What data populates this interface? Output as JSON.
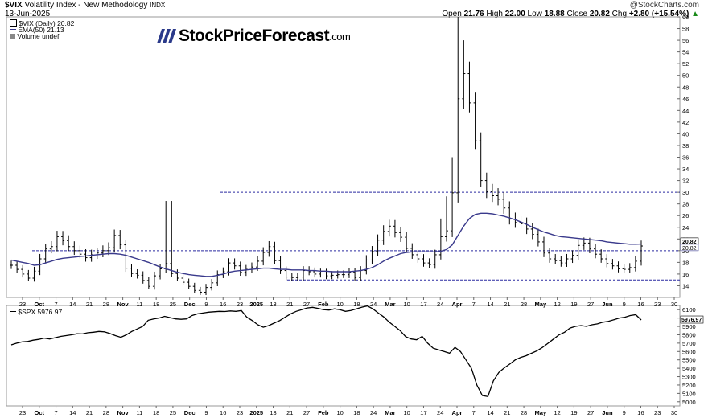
{
  "header": {
    "symbol": "$VIX",
    "name": "Volatility Index - New Methodology",
    "exchange": "INDX",
    "date": "13-Jun-2025",
    "attribution": "@StockCharts.com",
    "open_label": "Open",
    "open": "21.76",
    "high_label": "High",
    "high": "22.00",
    "low_label": "Low",
    "low": "18.88",
    "close_label": "Close",
    "close": "20.82",
    "chg_label": "Chg",
    "chg": "+2.80 (+15.54%)",
    "arrow": "▲"
  },
  "legend": {
    "price": "$VIX (Daily) 20.82",
    "ema": "EMA(50) 21.13",
    "volume": "Volume undef"
  },
  "logo": {
    "main": "StockPriceForecast",
    "suffix": ".com"
  },
  "lower_panel": {
    "legend": "$SPX 5976.97"
  },
  "colors": {
    "bars": "#000000",
    "ema": "#3a3a8c",
    "dashed": "#2a2aa0",
    "spx": "#000000"
  },
  "chart_data": [
    {
      "type": "ohlc",
      "title": "$VIX (Daily)",
      "ylim": [
        12,
        60
      ],
      "y_ticks": [
        14,
        16,
        18,
        20,
        22,
        24,
        26,
        28,
        30,
        32,
        34,
        36,
        38,
        40,
        42,
        44,
        46,
        48,
        50,
        52,
        54,
        56,
        58,
        60
      ],
      "last_value_labels": [
        "20.82",
        "20.82"
      ],
      "x_tick_labels": [
        "23",
        "Oct",
        "7",
        "14",
        "21",
        "28",
        "Nov",
        "11",
        "18",
        "25",
        "Dec",
        "9",
        "16",
        "23",
        "2025",
        "13",
        "21",
        "27",
        "Feb",
        "10",
        "18",
        "24",
        "Mar",
        "10",
        "17",
        "24",
        "Apr",
        "7",
        "14",
        "21",
        "28",
        "May",
        "12",
        "19",
        "27",
        "Jun",
        "9",
        "16",
        "23",
        "30"
      ],
      "horizontal_levels": [
        {
          "value": 30,
          "from": "Dec 16",
          "to": "end"
        },
        {
          "value": 20,
          "from": "Sep 23",
          "to": "end"
        },
        {
          "value": 15,
          "from": "Jan 13",
          "to": "end"
        }
      ],
      "close_path": [
        17.5,
        16.8,
        16.0,
        15.3,
        16.5,
        18.6,
        20.3,
        20.7,
        22.4,
        21.7,
        20.7,
        20.0,
        19.4,
        18.8,
        19.3,
        19.6,
        20.0,
        20.5,
        22.6,
        21.0,
        17.0,
        16.1,
        15.8,
        14.9,
        13.9,
        15.7,
        16.9,
        17.8,
        16.1,
        15.3,
        14.6,
        13.9,
        13.2,
        12.9,
        13.7,
        14.5,
        15.9,
        16.4,
        17.9,
        17.4,
        16.3,
        16.8,
        17.2,
        18.2,
        19.7,
        20.7,
        18.3,
        16.6,
        15.5,
        15.4,
        15.5,
        16.6,
        16.4,
        16.0,
        16.2,
        15.7,
        15.8,
        15.9,
        15.9,
        16.3,
        15.4,
        16.6,
        18.4,
        19.9,
        21.8,
        23.3,
        24.2,
        23.1,
        22.3,
        20.4,
        19.3,
        18.6,
        17.9,
        17.6,
        19.3,
        22.4,
        23.4,
        29.9,
        46.0,
        50.3,
        45.3,
        38.8,
        32.0,
        30.1,
        29.4,
        28.8,
        27.3,
        25.4,
        24.8,
        24.6,
        23.7,
        22.8,
        21.5,
        19.6,
        18.6,
        18.3,
        17.9,
        18.6,
        19.2,
        20.9,
        21.3,
        20.3,
        19.4,
        18.6,
        17.8,
        17.4,
        16.9,
        16.8,
        17.1,
        18.2,
        20.8
      ],
      "ema_path": [
        18.4,
        18.2,
        18.0,
        17.8,
        17.5,
        17.6,
        17.9,
        18.2,
        18.5,
        18.7,
        18.8,
        18.9,
        19.0,
        19.1,
        19.2,
        19.3,
        19.4,
        19.5,
        19.5,
        19.4,
        19.2,
        18.9,
        18.6,
        18.3,
        18.0,
        17.6,
        17.2,
        16.9,
        16.6,
        16.3,
        16.1,
        15.9,
        15.8,
        15.7,
        15.6,
        15.6,
        15.8,
        16.0,
        16.3,
        16.5,
        16.6,
        16.7,
        16.8,
        16.9,
        17.0,
        17.0,
        16.9,
        16.8,
        16.8,
        16.7,
        16.7,
        16.7,
        16.6,
        16.6,
        16.5,
        16.5,
        16.4,
        16.4,
        16.4,
        16.4,
        16.5,
        16.6,
        16.8,
        17.1,
        17.6,
        18.2,
        18.7,
        19.1,
        19.5,
        19.7,
        19.8,
        19.8,
        19.8,
        19.8,
        19.8,
        19.9,
        20.2,
        21.0,
        22.6,
        24.2,
        25.5,
        26.2,
        26.4,
        26.4,
        26.3,
        26.1,
        25.9,
        25.6,
        25.3,
        24.9,
        24.5,
        24.0,
        23.6,
        23.2,
        22.9,
        22.6,
        22.4,
        22.3,
        22.2,
        22.1,
        22.0,
        21.9,
        21.8,
        21.7,
        21.5,
        21.4,
        21.3,
        21.2,
        21.1,
        21.1,
        21.13
      ]
    },
    {
      "type": "line",
      "title": "$SPX",
      "ylim": [
        4950,
        6150
      ],
      "y_ticks": [
        5000,
        5100,
        5200,
        5300,
        5400,
        5500,
        5600,
        5700,
        5800,
        5900,
        6000,
        6100
      ],
      "last_value_label": "5976.97",
      "values": [
        5680,
        5700,
        5715,
        5720,
        5735,
        5745,
        5760,
        5750,
        5765,
        5780,
        5790,
        5800,
        5812,
        5810,
        5825,
        5830,
        5840,
        5835,
        5815,
        5790,
        5770,
        5800,
        5840,
        5870,
        5900,
        5973,
        5990,
        6000,
        6020,
        6005,
        5990,
        5985,
        5990,
        6030,
        6050,
        6060,
        6070,
        6075,
        6080,
        6078,
        6085,
        6080,
        6090,
        6010,
        5970,
        5920,
        5890,
        5910,
        5940,
        5970,
        6010,
        6050,
        6080,
        6100,
        6120,
        6128,
        6115,
        6100,
        6095,
        6110,
        6100,
        6080,
        6090,
        6110,
        6130,
        6144,
        6110,
        6060,
        6013,
        5950,
        5900,
        5850,
        5778,
        5750,
        5740,
        5780,
        5700,
        5640,
        5620,
        5600,
        5580,
        5650,
        5600,
        5500,
        5400,
        5200,
        5074,
        5062,
        5250,
        5350,
        5405,
        5450,
        5500,
        5530,
        5550,
        5580,
        5610,
        5650,
        5700,
        5750,
        5800,
        5830,
        5880,
        5900,
        5910,
        5900,
        5920,
        5930,
        5950,
        5960,
        5980,
        6000,
        6010,
        6030,
        6040,
        5976.97
      ]
    }
  ]
}
